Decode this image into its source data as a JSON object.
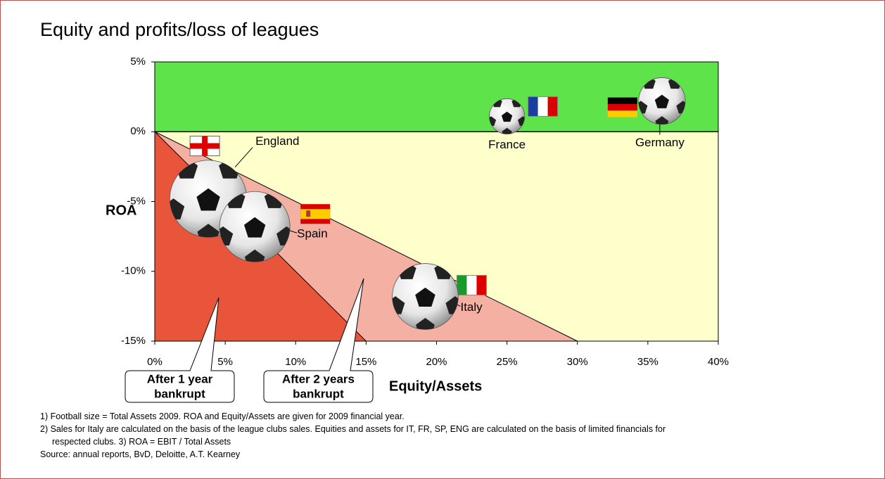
{
  "chart_data": {
    "type": "scatter",
    "title": "Equity and profits/loss of leagues",
    "x_label": "Equity/Assets",
    "y_label": "ROA",
    "xlim": [
      0,
      40
    ],
    "ylim": [
      -15,
      5
    ],
    "xticks": [
      {
        "value": 0,
        "label": "0%"
      },
      {
        "value": 5,
        "label": "5%"
      },
      {
        "value": 10,
        "label": "10%"
      },
      {
        "value": 15,
        "label": "15%"
      },
      {
        "value": 20,
        "label": "20%"
      },
      {
        "value": 25,
        "label": "25%"
      },
      {
        "value": 30,
        "label": "30%"
      },
      {
        "value": 35,
        "label": "35%"
      },
      {
        "value": 40,
        "label": "40%"
      }
    ],
    "yticks": [
      {
        "value": 5,
        "label": "5%"
      },
      {
        "value": 0,
        "label": "0%"
      },
      {
        "value": -5,
        "label": "-5%"
      },
      {
        "value": -10,
        "label": "-10%"
      },
      {
        "value": -15,
        "label": "-15%"
      }
    ],
    "labels": [
      "England",
      "Spain",
      "France",
      "Germany",
      "Italy"
    ],
    "x": [
      3.8,
      7.1,
      25.0,
      36.0,
      19.2
    ],
    "values": [
      -4.8,
      -6.8,
      1.1,
      2.2,
      -11.8
    ],
    "sizes": [
      30,
      25,
      6.3,
      11,
      22
    ],
    "positive_color": "#5ee34a",
    "negative_color": "#ffffcc",
    "zones": [
      {
        "x_end": 30,
        "color": "#f4b0a3",
        "label": [
          "After 2 years",
          "bankrupt"
        ]
      },
      {
        "x_end": 15,
        "color": "#e8553a",
        "label": [
          "After 1 year",
          "bankrupt"
        ]
      }
    ],
    "notes": [
      "1)  Football size = Total Assets 2009. ROA and Equity/Assets are given for 2009 financial year.",
      "2)  Sales for Italy are calculated on the basis of the league clubs sales. Equities  and assets for IT, FR, SP, ENG are calculated on the basis of limited financials for",
      "respected clubs. 3) ROA = EBIT / Total Assets",
      "Source: annual reports, BvD, Deloitte, A.T. Kearney"
    ]
  }
}
